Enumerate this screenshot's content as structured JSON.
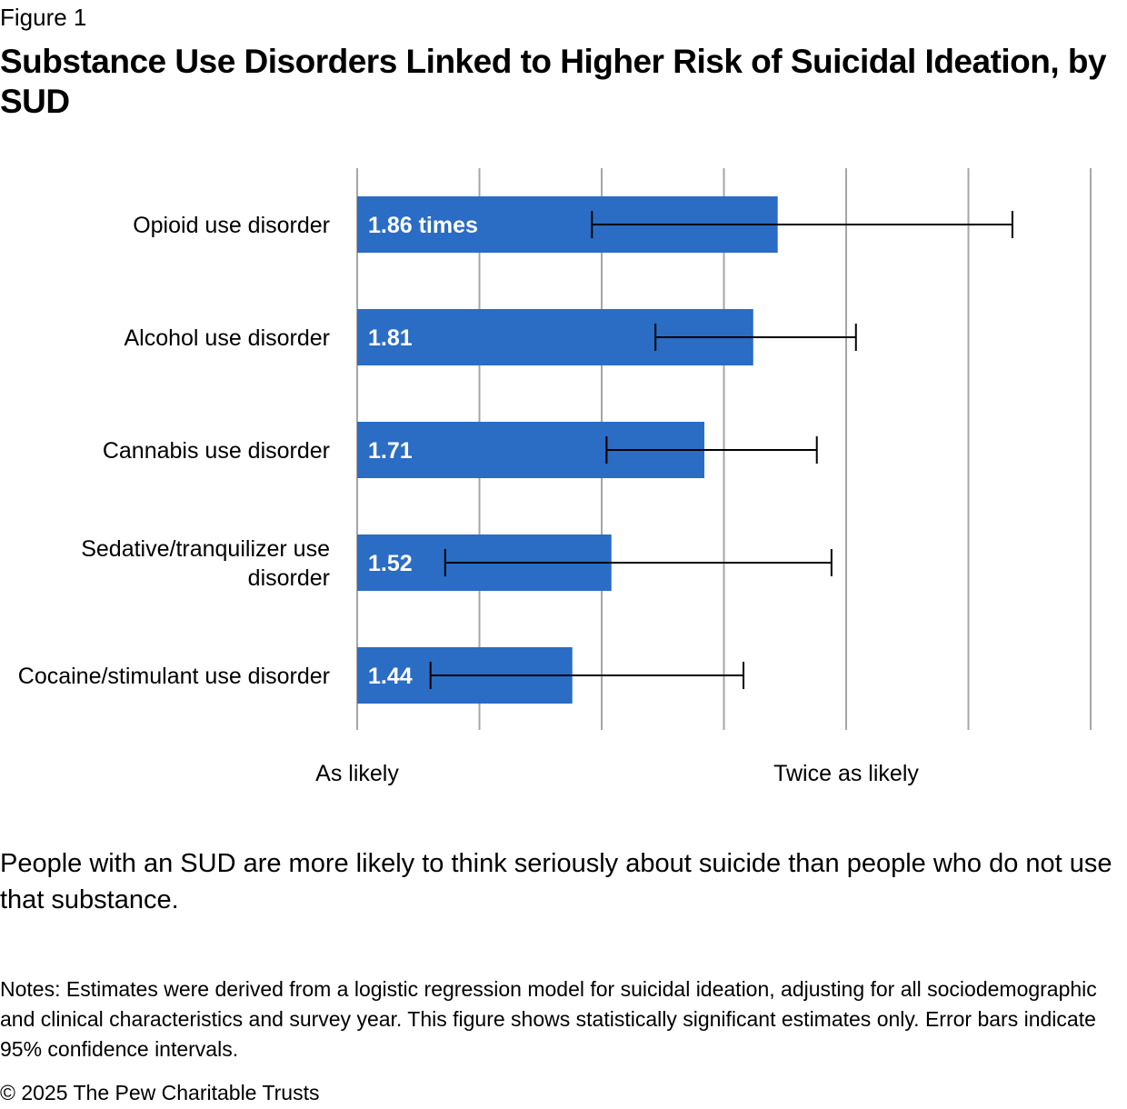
{
  "figure_label": "Figure 1",
  "chart_data": {
    "type": "bar",
    "orientation": "horizontal",
    "title": "Substance Use Disorders Linked to Higher Risk of Suicidal Ideation, by SUD",
    "categories": [
      "Opioid use disorder",
      "Alcohol use disorder",
      "Cannabis use disorder",
      "Sedative/tranquilizer use disorder",
      "Cocaine/stimulant use disorder"
    ],
    "category_lines": [
      [
        "Opioid use disorder"
      ],
      [
        "Alcohol use disorder"
      ],
      [
        "Cannabis use disorder"
      ],
      [
        "Sedative/tranquilizer use",
        "disorder"
      ],
      [
        "Cocaine/stimulant use disorder"
      ]
    ],
    "values": [
      1.86,
      1.81,
      1.71,
      1.52,
      1.44
    ],
    "data_labels": [
      "1.86 times",
      "1.81",
      "1.71",
      "1.52",
      "1.44"
    ],
    "ci_lower": [
      1.48,
      1.61,
      1.51,
      1.18,
      1.15
    ],
    "ci_upper": [
      2.34,
      2.02,
      1.94,
      1.97,
      1.79
    ],
    "xlim": [
      1.0,
      2.5
    ],
    "grid_ticks": [
      1.0,
      1.25,
      1.5,
      1.75,
      2.0,
      2.25,
      2.5
    ],
    "axis_labels": [
      {
        "value": 1.0,
        "text": "As likely"
      },
      {
        "value": 2.0,
        "text": "Twice as likely"
      }
    ],
    "grid": true,
    "bar_color": "#2b6cc4"
  },
  "subtitle": "People with an SUD are more likely to think seriously about suicide than people who do not use that substance.",
  "notes": "Notes: Estimates were derived from a logistic regression model for suicidal ideation, adjusting for all sociodemographic and clinical characteristics and survey year. This figure shows statistically significant estimates only. Error bars indicate 95% confidence intervals.",
  "copyright": "© 2025 The Pew Charitable Trusts"
}
